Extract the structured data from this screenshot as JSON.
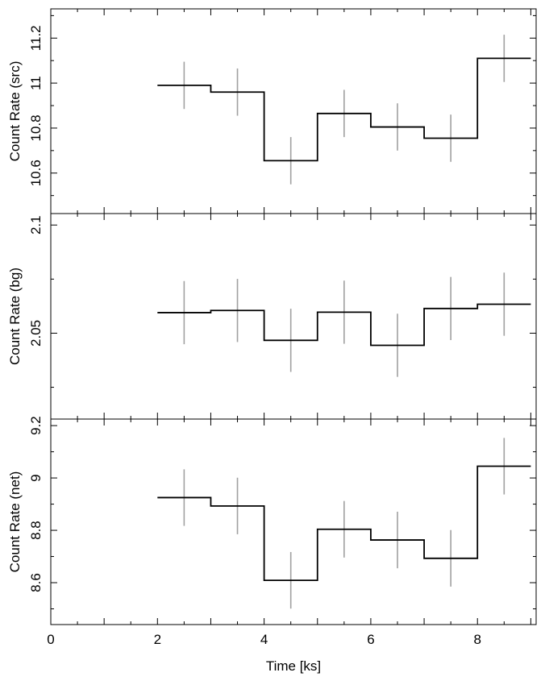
{
  "chart_data": {
    "type": "line",
    "xlabel": "Time [ks]",
    "xlim": [
      0,
      9.1
    ],
    "x_ticks": [
      "0",
      "2",
      "4",
      "6",
      "8"
    ],
    "x_tick_values": [
      0,
      2,
      4,
      6,
      8
    ],
    "bin_edges": [
      2,
      3,
      4,
      5,
      6,
      7,
      8,
      9
    ],
    "bin_centers": [
      2.5,
      3.5,
      4.5,
      5.5,
      6.5,
      7.5,
      8.5
    ],
    "panels": [
      {
        "ylabel": "Count Rate (src)",
        "ylim": [
          10.42,
          11.33
        ],
        "y_ticks": [
          "10.6",
          "10.8",
          "11",
          "11.2"
        ],
        "y_tick_values": [
          10.6,
          10.8,
          11.0,
          11.2
        ],
        "values": [
          10.99,
          10.96,
          10.655,
          10.865,
          10.805,
          10.755,
          11.11
        ],
        "errors": [
          0.105,
          0.105,
          0.105,
          0.105,
          0.105,
          0.105,
          0.105
        ]
      },
      {
        "ylabel": "Count Rate (bg)",
        "ylim": [
          2.0103,
          2.1053
        ],
        "y_ticks": [
          "2.05",
          "2.1"
        ],
        "y_tick_values": [
          2.05,
          2.1
        ],
        "values": [
          2.0595,
          2.0605,
          2.0467,
          2.0597,
          2.0444,
          2.0614,
          2.0634
        ],
        "errors": [
          0.0146,
          0.0146,
          0.0146,
          0.0146,
          0.0146,
          0.0146,
          0.0146
        ]
      },
      {
        "ylabel": "Count Rate (net)",
        "ylim": [
          8.44,
          9.225
        ],
        "y_ticks": [
          "8.6",
          "8.8",
          "9",
          "9.2"
        ],
        "y_tick_values": [
          8.6,
          8.8,
          9.0,
          9.2
        ],
        "values": [
          8.925,
          8.893,
          8.609,
          8.804,
          8.763,
          8.693,
          9.045
        ],
        "errors": [
          0.108,
          0.108,
          0.108,
          0.108,
          0.108,
          0.108,
          0.108
        ]
      }
    ]
  }
}
